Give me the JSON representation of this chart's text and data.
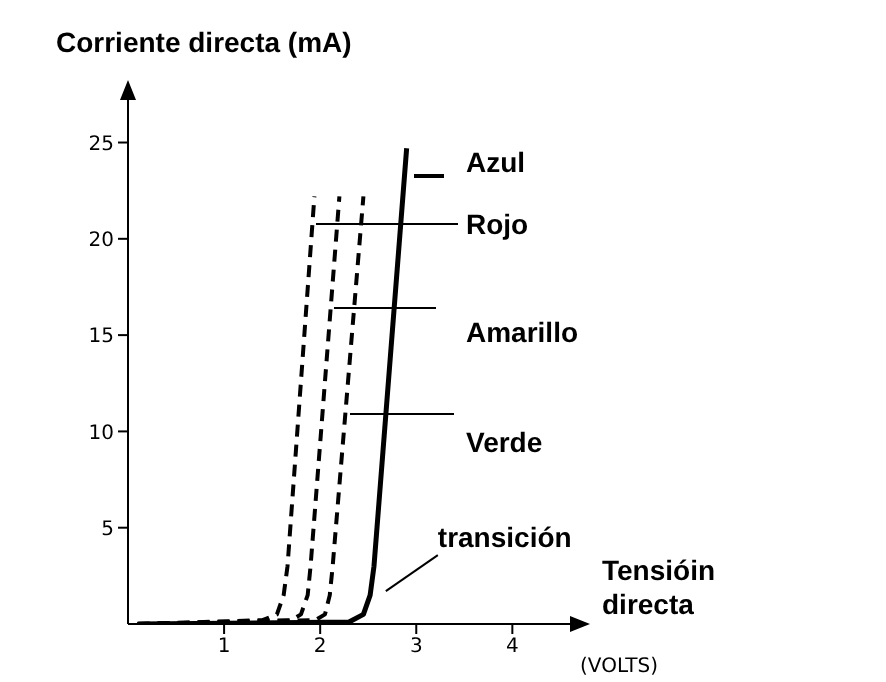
{
  "chart_data": {
    "type": "line",
    "ylabel": "Corriente directa (mA)",
    "xlabel": "Tensióin directa",
    "xlim": [
      0,
      4.6
    ],
    "ylim": [
      0,
      27
    ],
    "xticks": [
      1,
      2,
      3,
      4
    ],
    "yticks": [
      5,
      10,
      15,
      20,
      25
    ],
    "grid": false,
    "marker": "none",
    "series": [
      {
        "name": "Azul",
        "color": "#000000",
        "line_style": "solid",
        "x": [
          0.1,
          2.3,
          2.45,
          2.52,
          2.56,
          2.9
        ],
        "values": [
          0,
          0.1,
          0.5,
          1.5,
          3,
          24.7
        ]
      },
      {
        "name": "Rojo",
        "color": "#000000",
        "line_style": "dashed",
        "x": [
          0.1,
          1.4,
          1.55,
          1.62,
          1.66,
          1.94
        ],
        "values": [
          0,
          0.2,
          0.5,
          1.5,
          3,
          22.2
        ]
      },
      {
        "name": "Amarillo",
        "color": "#000000",
        "line_style": "dashed",
        "x": [
          0.1,
          1.7,
          1.8,
          1.87,
          1.9,
          2.2
        ],
        "values": [
          0,
          0.2,
          0.5,
          1.5,
          3,
          22.2
        ]
      },
      {
        "name": "Verde",
        "color": "#000000",
        "line_style": "dashed",
        "x": [
          0.1,
          1.95,
          2.05,
          2.1,
          2.13,
          2.45
        ],
        "values": [
          0,
          0.2,
          0.5,
          1.5,
          3,
          22.2
        ]
      }
    ],
    "annotations": [
      {
        "text": "transición",
        "x": 2.6,
        "y": 1.5
      },
      "(VOLTS)"
    ]
  }
}
